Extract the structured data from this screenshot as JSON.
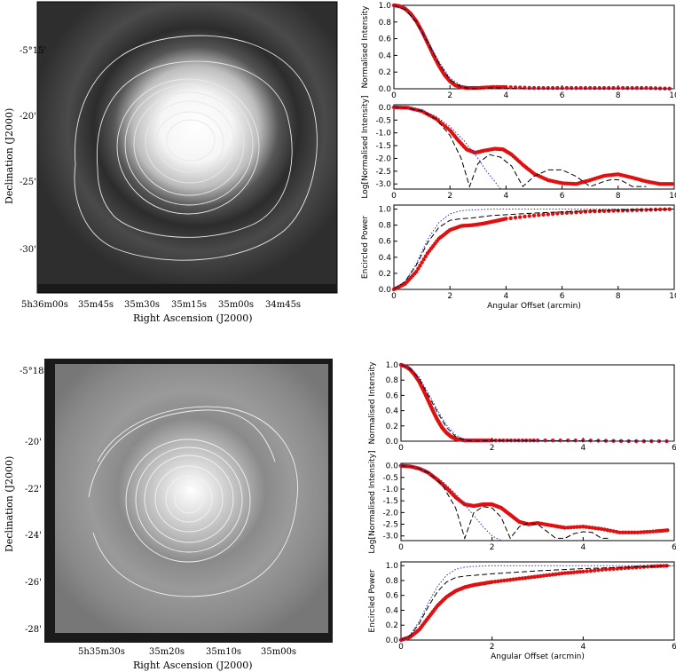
{
  "chart_data": [
    {
      "type": "image",
      "title": "",
      "xlabel": "Right Ascension (J2000)",
      "ylabel": "Declination (J2000)",
      "xticks": [
        "5h36m00s",
        "35m45s",
        "35m30s",
        "35m15s",
        "35m00s",
        "34m45s"
      ],
      "yticks": [
        "-5°15'",
        "-20'",
        "-25'",
        "-30'"
      ]
    },
    {
      "type": "line",
      "ylabel": "Normalised Intensity",
      "xlim": [
        0,
        10
      ],
      "ylim": [
        0,
        1.0
      ],
      "xticks": [
        "0",
        "2",
        "4",
        "6",
        "8",
        "10"
      ],
      "yticks": [
        "0.0",
        "0.2",
        "0.4",
        "0.6",
        "0.8",
        "1.0"
      ],
      "series": [
        {
          "style": "red-dots",
          "x": [
            0,
            0.2,
            0.4,
            0.6,
            0.8,
            1.0,
            1.2,
            1.4,
            1.6,
            1.8,
            2.0,
            2.2,
            2.4,
            2.6,
            3.0,
            3.5,
            4.0,
            5,
            6,
            7,
            8,
            9,
            10
          ],
          "values": [
            1.0,
            0.99,
            0.96,
            0.9,
            0.81,
            0.69,
            0.55,
            0.41,
            0.28,
            0.17,
            0.09,
            0.04,
            0.02,
            0.01,
            0.01,
            0.02,
            0.02,
            0.01,
            0.01,
            0.01,
            0.01,
            0.01,
            0.0
          ]
        },
        {
          "style": "black-dashed",
          "x": [
            0,
            0.4,
            0.8,
            1.2,
            1.6,
            2.0,
            2.4,
            2.8,
            3.5,
            5,
            10
          ],
          "values": [
            1.0,
            0.95,
            0.8,
            0.56,
            0.31,
            0.11,
            0.02,
            0.0,
            0.01,
            0.0,
            0.0
          ]
        },
        {
          "style": "blue-dotted",
          "x": [
            0,
            0.4,
            0.8,
            1.2,
            1.6,
            2.0,
            2.4,
            2.8,
            3.5,
            5,
            10
          ],
          "values": [
            1.0,
            0.96,
            0.82,
            0.58,
            0.33,
            0.13,
            0.04,
            0.01,
            0.0,
            0.0,
            0.0
          ]
        }
      ]
    },
    {
      "type": "line",
      "ylabel": "Log[Normalised Intensity]",
      "xlim": [
        0,
        10
      ],
      "ylim": [
        -3.2,
        0.1
      ],
      "xticks": [
        "0",
        "2",
        "4",
        "6",
        "8",
        "10"
      ],
      "yticks": [
        "0.0",
        "-0.5",
        "-1.0",
        "-1.5",
        "-2.0",
        "-2.5",
        "-3.0"
      ],
      "series": [
        {
          "style": "red-dots",
          "x": [
            0,
            0.5,
            1.0,
            1.5,
            2.0,
            2.3,
            2.6,
            2.9,
            3.2,
            3.6,
            3.9,
            4.2,
            4.6,
            5.0,
            5.5,
            6.0,
            6.5,
            7.0,
            7.5,
            8.0,
            8.5,
            9.0,
            9.5,
            10
          ],
          "values": [
            0.0,
            -0.02,
            -0.15,
            -0.45,
            -0.9,
            -1.3,
            -1.65,
            -1.78,
            -1.7,
            -1.62,
            -1.65,
            -1.85,
            -2.25,
            -2.6,
            -2.85,
            -2.97,
            -3.0,
            -2.85,
            -2.68,
            -2.62,
            -2.75,
            -2.9,
            -3.0,
            -3.0
          ]
        },
        {
          "style": "black-dashed",
          "x": [
            0,
            0.5,
            1.0,
            1.5,
            2.0,
            2.4,
            2.7,
            3.0,
            3.4,
            3.8,
            4.2,
            4.6,
            5.0,
            5.5,
            6.0,
            6.5,
            7.0,
            7.5,
            7.8,
            8.1,
            8.5,
            9.0
          ],
          "values": [
            0.0,
            -0.03,
            -0.15,
            -0.45,
            -1.1,
            -2.0,
            -3.1,
            -2.2,
            -1.85,
            -1.95,
            -2.3,
            -3.1,
            -2.7,
            -2.45,
            -2.45,
            -2.7,
            -3.1,
            -2.9,
            -2.82,
            -2.85,
            -3.1,
            -3.1
          ]
        },
        {
          "style": "blue-dotted",
          "x": [
            0,
            0.5,
            1.0,
            1.5,
            2.0,
            2.5,
            3.0,
            3.3,
            3.6,
            3.8
          ],
          "values": [
            0.0,
            -0.02,
            -0.12,
            -0.35,
            -0.75,
            -1.3,
            -2.0,
            -2.5,
            -2.9,
            -3.2
          ]
        }
      ]
    },
    {
      "type": "line",
      "ylabel": "Encircled Power",
      "xlabel": "Angular Offset (arcmin)",
      "xlim": [
        0,
        10
      ],
      "ylim": [
        0,
        1.05
      ],
      "xticks": [
        "0",
        "2",
        "4",
        "6",
        "8",
        "10"
      ],
      "yticks": [
        "0.0",
        "0.2",
        "0.4",
        "0.6",
        "0.8",
        "1.0"
      ],
      "series": [
        {
          "style": "red-dots",
          "x": [
            0,
            0.4,
            0.8,
            1.2,
            1.6,
            2.0,
            2.4,
            2.8,
            3.2,
            3.6,
            4.0,
            5,
            6,
            7,
            8,
            9,
            10
          ],
          "values": [
            0.0,
            0.07,
            0.22,
            0.45,
            0.63,
            0.74,
            0.79,
            0.8,
            0.82,
            0.85,
            0.88,
            0.92,
            0.95,
            0.97,
            0.98,
            0.99,
            1.0
          ]
        },
        {
          "style": "black-dashed",
          "x": [
            0,
            0.4,
            0.8,
            1.2,
            1.6,
            2.0,
            2.4,
            2.8,
            3.5,
            5,
            7,
            10
          ],
          "values": [
            0.0,
            0.1,
            0.3,
            0.58,
            0.77,
            0.86,
            0.88,
            0.89,
            0.92,
            0.95,
            0.98,
            1.0
          ]
        },
        {
          "style": "blue-dotted",
          "x": [
            0,
            0.4,
            0.8,
            1.2,
            1.6,
            2.0,
            2.4,
            2.8,
            3.5,
            5,
            10
          ],
          "values": [
            0.0,
            0.1,
            0.32,
            0.62,
            0.83,
            0.94,
            0.98,
            0.99,
            1.0,
            1.0,
            1.0
          ]
        }
      ]
    },
    {
      "type": "image",
      "title": "",
      "xlabel": "Right Ascension (J2000)",
      "ylabel": "Declination (J2000)",
      "xticks": [
        "5h35m30s",
        "35m20s",
        "35m10s",
        "35m00s"
      ],
      "yticks": [
        "-5°18'",
        "-20'",
        "-22'",
        "-24'",
        "-26'",
        "-28'"
      ]
    },
    {
      "type": "line",
      "ylabel": "Normalised Intensity",
      "xlim": [
        0,
        6
      ],
      "ylim": [
        0,
        1.0
      ],
      "xticks": [
        "0",
        "2",
        "4",
        "6"
      ],
      "yticks": [
        "0.0",
        "0.2",
        "0.4",
        "0.6",
        "0.8",
        "1.0"
      ],
      "series": [
        {
          "style": "red-dots",
          "x": [
            0,
            0.1,
            0.2,
            0.3,
            0.4,
            0.5,
            0.6,
            0.7,
            0.8,
            0.9,
            1.0,
            1.1,
            1.2,
            1.3,
            1.4,
            1.6,
            1.8,
            2.0,
            2.5,
            3,
            4,
            5,
            6
          ],
          "values": [
            1.0,
            0.98,
            0.94,
            0.87,
            0.78,
            0.66,
            0.53,
            0.4,
            0.28,
            0.18,
            0.11,
            0.06,
            0.03,
            0.02,
            0.01,
            0.01,
            0.01,
            0.01,
            0.01,
            0.01,
            0.01,
            0.0,
            0.0
          ]
        },
        {
          "style": "black-dashed",
          "x": [
            0,
            0.2,
            0.4,
            0.6,
            0.8,
            1.0,
            1.2,
            1.4,
            1.6,
            2.0,
            6
          ],
          "values": [
            1.0,
            0.95,
            0.82,
            0.6,
            0.38,
            0.18,
            0.06,
            0.01,
            0.0,
            0.01,
            0.0
          ]
        },
        {
          "style": "blue-dotted",
          "x": [
            0,
            0.2,
            0.4,
            0.6,
            0.8,
            1.0,
            1.2,
            1.4,
            1.6,
            2.0,
            6
          ],
          "values": [
            1.0,
            0.96,
            0.84,
            0.63,
            0.41,
            0.21,
            0.08,
            0.02,
            0.0,
            0.0,
            0.0
          ]
        }
      ]
    },
    {
      "type": "line",
      "ylabel": "Log[Normalised Intensity]",
      "xlim": [
        0,
        6
      ],
      "ylim": [
        -3.2,
        0.1
      ],
      "xticks": [
        "0",
        "2",
        "4",
        "6"
      ],
      "yticks": [
        "0.0",
        "-0.5",
        "-1.0",
        "-1.5",
        "-2.0",
        "-2.5",
        "-3.0"
      ],
      "series": [
        {
          "style": "red-dots",
          "x": [
            0,
            0.2,
            0.4,
            0.6,
            0.8,
            1.0,
            1.2,
            1.4,
            1.6,
            1.8,
            2.0,
            2.2,
            2.4,
            2.6,
            2.8,
            3.0,
            3.3,
            3.6,
            4.0,
            4.4,
            4.8,
            5.2,
            5.6,
            5.9
          ],
          "values": [
            0.0,
            -0.03,
            -0.12,
            -0.3,
            -0.6,
            -0.95,
            -1.35,
            -1.65,
            -1.72,
            -1.65,
            -1.65,
            -1.8,
            -2.1,
            -2.4,
            -2.5,
            -2.45,
            -2.55,
            -2.65,
            -2.6,
            -2.7,
            -2.85,
            -2.85,
            -2.8,
            -2.75
          ]
        },
        {
          "style": "black-dashed",
          "x": [
            0,
            0.3,
            0.6,
            0.9,
            1.2,
            1.4,
            1.6,
            1.8,
            2.0,
            2.2,
            2.4,
            2.6,
            2.8,
            3.0,
            3.2,
            3.4,
            3.6,
            3.8,
            4.0,
            4.2,
            4.4,
            4.6
          ],
          "values": [
            0.0,
            -0.05,
            -0.3,
            -0.8,
            -1.8,
            -3.1,
            -2.0,
            -1.75,
            -1.8,
            -2.2,
            -3.1,
            -2.6,
            -2.45,
            -2.5,
            -2.8,
            -3.1,
            -3.1,
            -2.9,
            -2.82,
            -2.85,
            -3.1,
            -3.1
          ]
        },
        {
          "style": "blue-dotted",
          "x": [
            0,
            0.3,
            0.6,
            0.9,
            1.2,
            1.5,
            1.8,
            2.0,
            2.2
          ],
          "values": [
            0.0,
            -0.05,
            -0.25,
            -0.65,
            -1.2,
            -1.9,
            -2.6,
            -3.0,
            -3.2
          ]
        }
      ]
    },
    {
      "type": "line",
      "ylabel": "Encircled Power",
      "xlabel": "Angular Offset (arcmin)",
      "xlim": [
        0,
        6
      ],
      "ylim": [
        0,
        1.05
      ],
      "xticks": [
        "0",
        "2",
        "4",
        "6"
      ],
      "yticks": [
        "0.0",
        "0.2",
        "0.4",
        "0.6",
        "0.8",
        "1.0"
      ],
      "series": [
        {
          "style": "red-dots",
          "x": [
            0,
            0.2,
            0.4,
            0.6,
            0.8,
            1.0,
            1.2,
            1.4,
            1.6,
            1.8,
            2.0,
            2.4,
            2.8,
            3.2,
            3.6,
            4.0,
            4.5,
            5.0,
            5.5,
            5.9
          ],
          "values": [
            0.0,
            0.04,
            0.14,
            0.3,
            0.46,
            0.58,
            0.66,
            0.71,
            0.74,
            0.76,
            0.78,
            0.81,
            0.84,
            0.87,
            0.9,
            0.92,
            0.95,
            0.97,
            0.99,
            1.0
          ]
        },
        {
          "style": "black-dashed",
          "x": [
            0,
            0.2,
            0.4,
            0.6,
            0.8,
            1.0,
            1.2,
            1.4,
            1.6,
            2.0,
            3,
            4,
            5,
            6
          ],
          "values": [
            0.0,
            0.06,
            0.22,
            0.45,
            0.65,
            0.78,
            0.84,
            0.86,
            0.87,
            0.89,
            0.93,
            0.96,
            0.98,
            1.0
          ]
        },
        {
          "style": "blue-dotted",
          "x": [
            0,
            0.2,
            0.4,
            0.6,
            0.8,
            1.0,
            1.2,
            1.4,
            1.6,
            2.0,
            6
          ],
          "values": [
            0.0,
            0.07,
            0.25,
            0.5,
            0.72,
            0.87,
            0.95,
            0.98,
            0.99,
            1.0,
            1.0
          ]
        }
      ]
    }
  ]
}
